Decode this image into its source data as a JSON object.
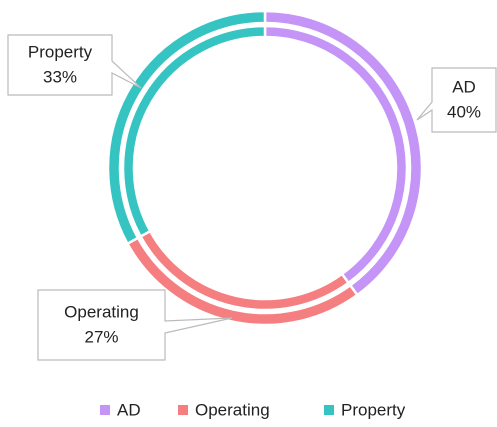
{
  "chart_data": {
    "type": "donut",
    "categories": [
      "AD",
      "Operating",
      "Property"
    ],
    "values": [
      40,
      27,
      33
    ],
    "value_labels": [
      "40%",
      "27%",
      "33%"
    ],
    "colors": [
      "#c594f7",
      "#f57f80",
      "#35c4c2"
    ],
    "legend": "bottom"
  }
}
